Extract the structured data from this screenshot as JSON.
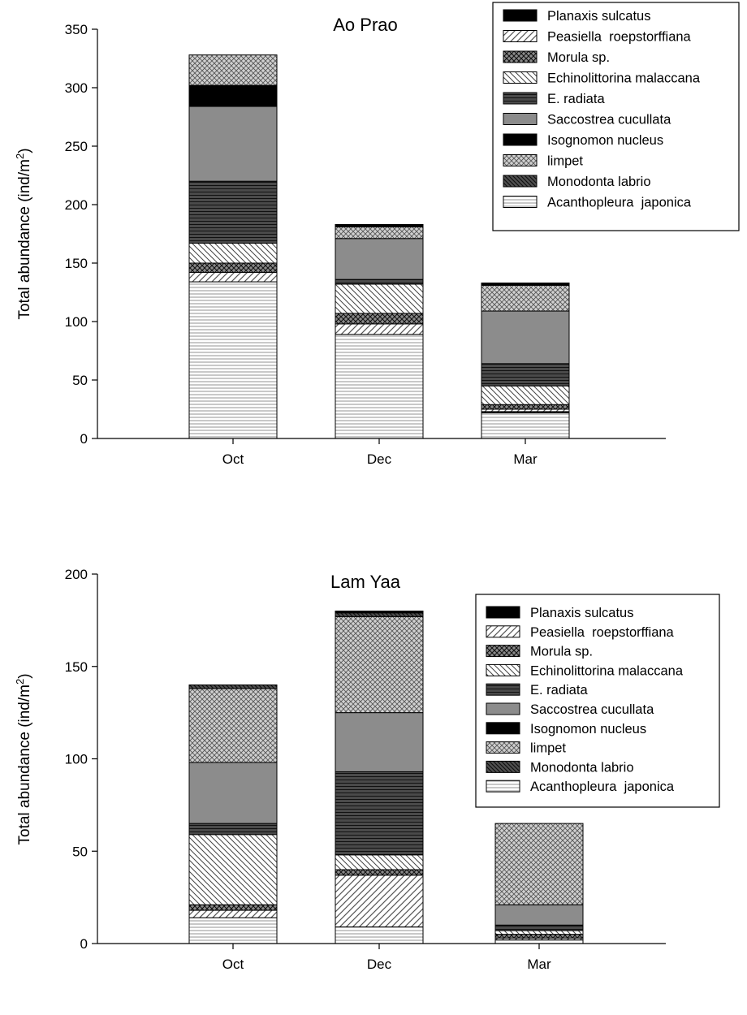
{
  "legend_labels": [
    "Planaxis sulcatus",
    "Peasiella  roepstorffiana",
    "Morula sp.",
    "Echinolittorina malaccana",
    "E. radiata",
    "Saccostrea cucullata",
    "Isognomon nucleus",
    "limpet",
    "Monodonta labrio",
    "Acanthopleura  japonica"
  ],
  "chart_data": [
    {
      "type": "bar",
      "stacked": true,
      "title": "Ao Prao",
      "xlabel": "",
      "ylabel": "Total abundance (ind/m2)",
      "ylim": [
        0,
        350
      ],
      "yticks": [
        0,
        50,
        100,
        150,
        200,
        250,
        300,
        350
      ],
      "categories": [
        "Oct",
        "Dec",
        "Mar"
      ],
      "legend_position": "top-right",
      "grid": false,
      "series": [
        {
          "name": "Acanthopleura  japonica",
          "values": [
            134,
            89,
            22
          ]
        },
        {
          "name": "Monodonta labrio",
          "values": [
            0,
            0,
            1
          ]
        },
        {
          "name": "Peasiella  roepstorffiana",
          "values": [
            8,
            9,
            2
          ]
        },
        {
          "name": "Morula sp.",
          "values": [
            8,
            9,
            4
          ]
        },
        {
          "name": "Echinolittorina malaccana",
          "values": [
            17,
            25,
            16
          ]
        },
        {
          "name": "E. radiata",
          "values": [
            53,
            4,
            19
          ]
        },
        {
          "name": "Saccostrea cucullata",
          "values": [
            64,
            35,
            45
          ]
        },
        {
          "name": "Isognomon nucleus",
          "values": [
            18,
            0,
            0
          ]
        },
        {
          "name": "limpet",
          "values": [
            26,
            10,
            22
          ]
        },
        {
          "name": "Planaxis sulcatus",
          "values": [
            0,
            2,
            2
          ]
        }
      ]
    },
    {
      "type": "bar",
      "stacked": true,
      "title": "Lam Yaa",
      "xlabel": "",
      "ylabel": "Total abundance (ind/m2)",
      "ylim": [
        0,
        200
      ],
      "yticks": [
        0,
        50,
        100,
        150,
        200
      ],
      "categories": [
        "Oct",
        "Dec",
        "Mar"
      ],
      "legend_position": "top-right",
      "grid": false,
      "series": [
        {
          "name": "Acanthopleura  japonica",
          "values": [
            14,
            9,
            2
          ]
        },
        {
          "name": "Peasiella  roepstorffiana",
          "values": [
            4,
            28,
            1
          ]
        },
        {
          "name": "Morula sp.",
          "values": [
            3,
            3,
            2
          ]
        },
        {
          "name": "Echinolittorina malaccana",
          "values": [
            38,
            8,
            2
          ]
        },
        {
          "name": "E. radiata",
          "values": [
            6,
            45,
            3
          ]
        },
        {
          "name": "Saccostrea cucullata",
          "values": [
            33,
            32,
            11
          ]
        },
        {
          "name": "limpet",
          "values": [
            40,
            52,
            44
          ]
        },
        {
          "name": "Monodonta labrio",
          "values": [
            2,
            2,
            0
          ]
        },
        {
          "name": "Planaxis sulcatus",
          "values": [
            0,
            1,
            0
          ]
        }
      ]
    }
  ]
}
